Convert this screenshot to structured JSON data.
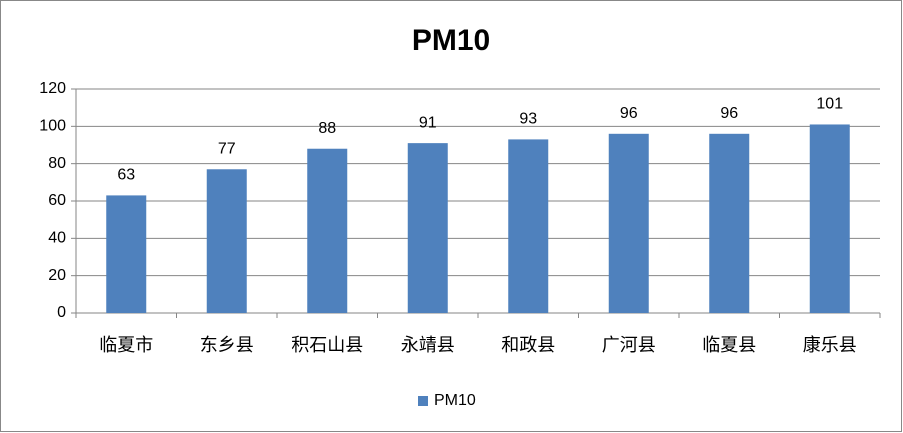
{
  "chart_data": {
    "type": "bar",
    "title": "PM10",
    "categories": [
      "临夏市",
      "东乡县",
      "积石山县",
      "永靖县",
      "和政县",
      "广河县",
      "临夏县",
      "康乐县"
    ],
    "series": [
      {
        "name": "PM10",
        "color": "#4f81bd",
        "values": [
          63,
          77,
          88,
          91,
          93,
          96,
          96,
          101
        ]
      }
    ],
    "ylim": [
      0,
      120
    ],
    "yticks": [
      0,
      20,
      40,
      60,
      80,
      100,
      120
    ],
    "grid": true,
    "legend": "bottom"
  }
}
